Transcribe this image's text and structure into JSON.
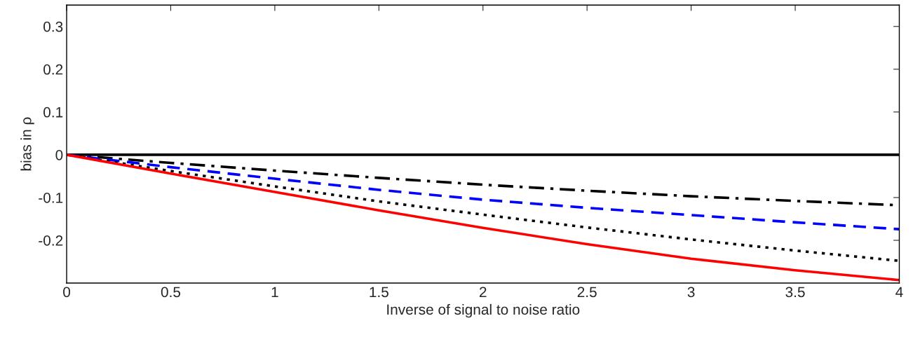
{
  "chart_data": {
    "type": "line",
    "xlabel": "Inverse of signal to noise ratio",
    "ylabel": "bias in ρ",
    "x": [
      0,
      0.5,
      1,
      1.5,
      2,
      2.5,
      3,
      3.5,
      4
    ],
    "series": [
      {
        "color": "#000000",
        "line_style": "solid",
        "values": [
          0,
          0,
          0,
          0,
          0,
          0,
          0,
          0,
          0
        ]
      },
      {
        "color": "#000000",
        "line_style": "dashdot",
        "values": [
          0,
          -0.019,
          -0.037,
          -0.054,
          -0.07,
          -0.084,
          -0.097,
          -0.108,
          -0.118
        ]
      },
      {
        "color": "#0000ff",
        "line_style": "dashed",
        "values": [
          0,
          -0.029,
          -0.056,
          -0.082,
          -0.105,
          -0.124,
          -0.141,
          -0.158,
          -0.174
        ]
      },
      {
        "color": "#000000",
        "line_style": "dotted",
        "values": [
          0,
          -0.038,
          -0.074,
          -0.109,
          -0.14,
          -0.17,
          -0.198,
          -0.224,
          -0.248
        ]
      },
      {
        "color": "#ff0000",
        "line_style": "solid",
        "values": [
          0,
          -0.044,
          -0.087,
          -0.13,
          -0.171,
          -0.209,
          -0.243,
          -0.27,
          -0.293
        ]
      }
    ],
    "xlim": [
      0,
      4
    ],
    "ylim": [
      -0.3,
      0.35
    ],
    "xticks": [
      0,
      0.5,
      1,
      1.5,
      2,
      2.5,
      3,
      3.5,
      4
    ],
    "yticks": [
      -0.2,
      -0.1,
      0,
      0.1,
      0.2,
      0.3
    ],
    "grid": false,
    "legend": false
  }
}
